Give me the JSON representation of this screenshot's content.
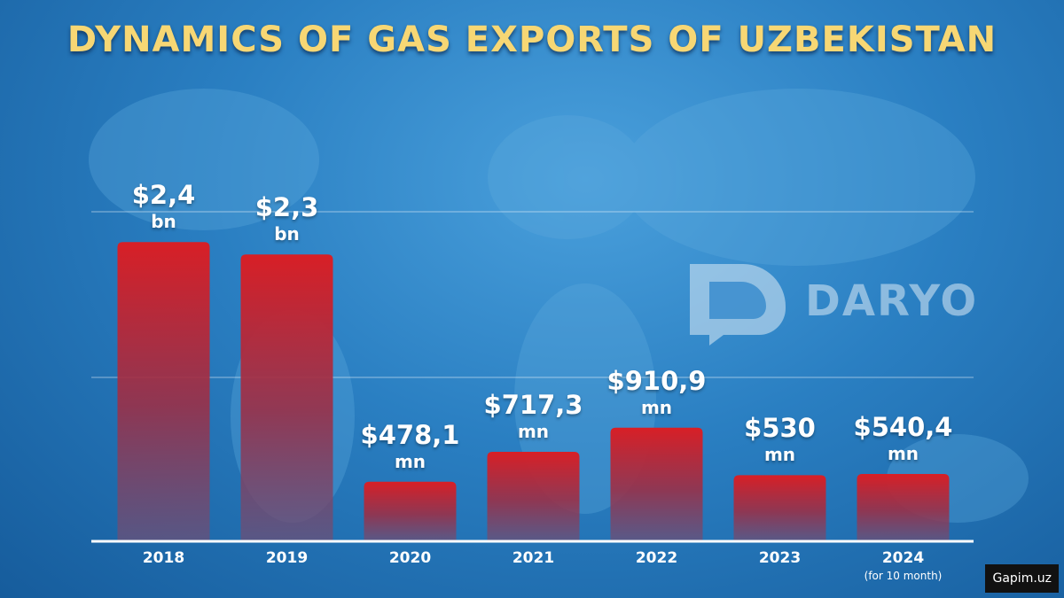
{
  "chart_data": {
    "type": "bar",
    "title": "DYNAMICS OF GAS EXPORTS OF UZBEKISTAN",
    "categories": [
      "2018",
      "2019",
      "2020",
      "2021",
      "2022",
      "2023",
      "2024"
    ],
    "x_note": "(for 10 month)",
    "values": [
      2400,
      2300,
      478.1,
      717.3,
      910.9,
      530,
      540.4
    ],
    "value_labels": [
      "$2,4 bn",
      "$2,3 bn",
      "$478,1 mn",
      "$717,3 mn",
      "$910,9 mn",
      "$530 mn",
      "$540,4 mn"
    ],
    "color": "#d81f26",
    "ylim": [
      0,
      2700
    ],
    "brand": "DARYO",
    "watermark": "Gapim.uz"
  }
}
